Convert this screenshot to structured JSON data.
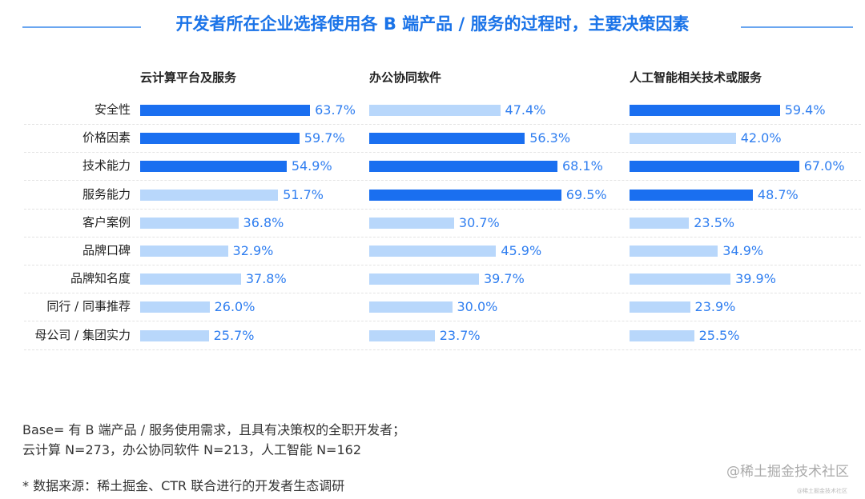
{
  "chart_data": {
    "type": "bar",
    "orientation": "horizontal",
    "title": "开发者所在企业选择使用各 B 端产品 / 服务的过程时，主要决策因素",
    "categories": [
      "安全性",
      "价格因素",
      "技术能力",
      "服务能力",
      "客户案例",
      "品牌口碑",
      "品牌知名度",
      "同行 / 同事推荐",
      "母公司 / 集团实力"
    ],
    "panels": [
      {
        "name": "云计算平台及服务",
        "values": [
          63.7,
          59.7,
          54.9,
          51.7,
          36.8,
          32.9,
          37.8,
          26.0,
          25.7
        ]
      },
      {
        "name": "办公协同软件",
        "values": [
          47.4,
          56.3,
          68.1,
          69.5,
          30.7,
          45.9,
          39.7,
          30.0,
          23.7
        ]
      },
      {
        "name": "人工智能相关技术或服务",
        "values": [
          59.4,
          42.0,
          67.0,
          48.7,
          23.5,
          34.9,
          39.9,
          23.9,
          25.5
        ]
      }
    ],
    "unit": "%",
    "highlight": "top 3 per panel in dark blue",
    "colors": {
      "highlight": "#1a6ff0",
      "normal": "#b8d7fb",
      "label": "#2f7ef0",
      "title": "#1a73e8"
    },
    "grid": false
  },
  "footer": {
    "base": "Base= 有 B 端产品 / 服务使用需求，且具有决策权的全职开发者；",
    "sample": "云计算 N=273，办公协同软件 N=213，人工智能 N=162",
    "source": "* 数据来源：稀土掘金、CTR 联合进行的开发者生态调研"
  },
  "watermark": "@稀土掘金技术社区"
}
